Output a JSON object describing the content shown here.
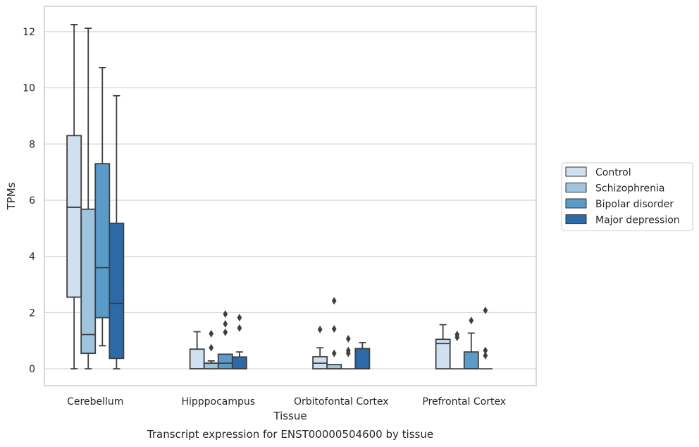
{
  "chart_data": {
    "type": "box",
    "caption": "Transcript expression for ENST00000504600 by tissue",
    "xlabel": "Tissue",
    "ylabel": "TPMs",
    "ylim": [
      -0.6,
      12.9
    ],
    "yticks": [
      0,
      2,
      4,
      6,
      8,
      10,
      12
    ],
    "grid": "horizontal",
    "legend_position": "right",
    "categories": [
      "Cerebellum",
      "Hipppocampus",
      "Orbitofontal Cortex",
      "Prefrontal Cortex"
    ],
    "series": [
      {
        "name": "Control",
        "color": "#d0e0f0",
        "boxes": [
          {
            "min": 0,
            "q1": 2.55,
            "median": 5.75,
            "q3": 8.3,
            "max": 12.25,
            "outliers": []
          },
          {
            "min": 0,
            "q1": 0,
            "median": 0,
            "q3": 0.7,
            "max": 1.32,
            "outliers": []
          },
          {
            "min": 0,
            "q1": 0,
            "median": 0.2,
            "q3": 0.43,
            "max": 0.75,
            "outliers": [
              1.4
            ]
          },
          {
            "min": 0,
            "q1": 0,
            "median": 0.9,
            "q3": 1.05,
            "max": 1.57,
            "outliers": []
          }
        ]
      },
      {
        "name": "Schizophrenia",
        "color": "#9ec4de",
        "boxes": [
          {
            "min": 0,
            "q1": 0.55,
            "median": 1.22,
            "q3": 5.68,
            "max": 12.12,
            "outliers": []
          },
          {
            "min": 0,
            "q1": 0,
            "median": 0.2,
            "q3": 0.2,
            "max": 0.28,
            "outliers": [
              0.75,
              1.25
            ]
          },
          {
            "min": 0,
            "q1": 0,
            "median": 0,
            "q3": 0.15,
            "max": 0.15,
            "outliers": [
              0.55,
              1.42,
              2.42
            ]
          },
          {
            "min": 0,
            "q1": 0,
            "median": 0,
            "q3": 0,
            "max": 0,
            "outliers": [
              1.12,
              1.22
            ]
          }
        ]
      },
      {
        "name": "Bipolar disorder",
        "color": "#5a9bc9",
        "boxes": [
          {
            "min": 0.82,
            "q1": 1.82,
            "median": 3.6,
            "q3": 7.3,
            "max": 10.72,
            "outliers": []
          },
          {
            "min": 0,
            "q1": 0,
            "median": 0.2,
            "q3": 0.52,
            "max": 0.52,
            "outliers": [
              1.3,
              1.6,
              1.95
            ]
          },
          {
            "min": 0,
            "q1": 0,
            "median": 0,
            "q3": 0,
            "max": 0,
            "outliers": [
              0.55,
              0.65,
              1.07
            ]
          },
          {
            "min": 0,
            "q1": 0,
            "median": 0,
            "q3": 0.6,
            "max": 1.27,
            "outliers": [
              1.72
            ]
          }
        ]
      },
      {
        "name": "Major depression",
        "color": "#2c6aa8",
        "boxes": [
          {
            "min": 0,
            "q1": 0.37,
            "median": 2.33,
            "q3": 5.18,
            "max": 9.72,
            "outliers": []
          },
          {
            "min": 0,
            "q1": 0,
            "median": 0,
            "q3": 0.42,
            "max": 0.6,
            "outliers": [
              1.45,
              1.82
            ]
          },
          {
            "min": 0,
            "q1": 0,
            "median": 0,
            "q3": 0.72,
            "max": 0.93,
            "outliers": []
          },
          {
            "min": 0,
            "q1": 0,
            "median": 0,
            "q3": 0,
            "max": 0,
            "outliers": [
              0.47,
              0.65,
              2.08
            ]
          }
        ]
      }
    ]
  }
}
